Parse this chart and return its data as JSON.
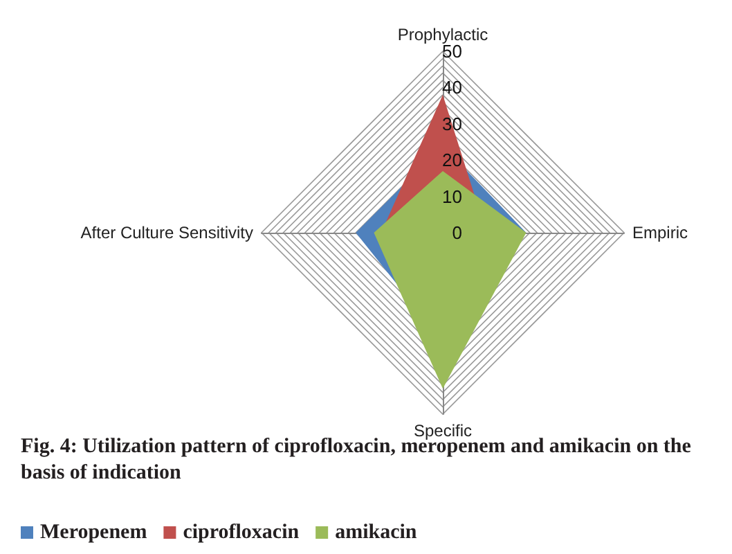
{
  "chart_data": {
    "type": "radar",
    "title": "Fig. 4: Utilization pattern of ciprofloxacin, meropenem and amikacin on the basis of indication",
    "categories": [
      "Prophylactic",
      "Empiric",
      "Specific",
      "After Culture Sensitivity"
    ],
    "series": [
      {
        "name": "Meropenem",
        "color": "#4f81bd",
        "values": [
          24,
          23,
          30,
          24
        ]
      },
      {
        "name": "ciprofloxacin",
        "color": "#c0504d",
        "values": [
          38,
          12,
          10,
          17
        ]
      },
      {
        "name": "amikacin",
        "color": "#9bbb59",
        "values": [
          17,
          23,
          43,
          19
        ]
      }
    ],
    "ylim": [
      0,
      50
    ],
    "yticks": [
      0,
      10,
      20,
      30,
      40,
      50
    ],
    "grid": true,
    "legend": "bottom"
  }
}
